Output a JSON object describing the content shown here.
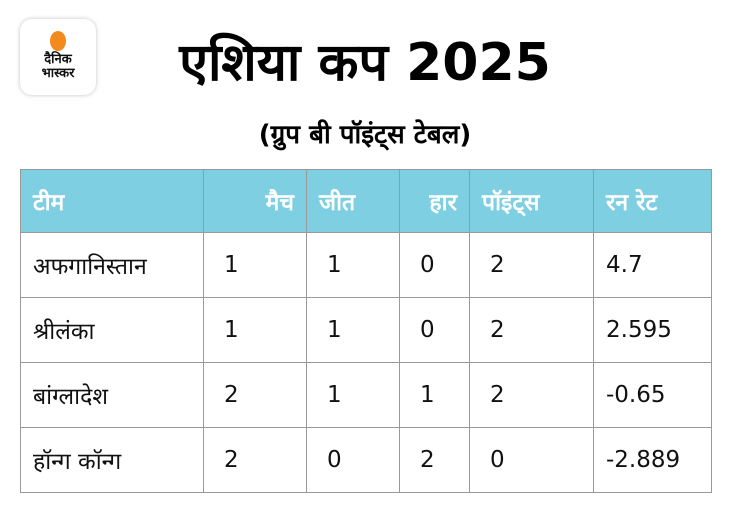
{
  "logo": {
    "line1": "दैनिक",
    "line2": "भास्कर"
  },
  "title": "एशिया कप 2025",
  "subtitle": "(ग्रुप बी पॉइंट्स टेबल)",
  "table": {
    "headers": [
      "टीम",
      "मैच",
      "जीत",
      "हार",
      "पॉइंट्स",
      "रन रेट"
    ],
    "rows": [
      [
        "अफगानिस्तान",
        "1",
        "1",
        "0",
        "2",
        "4.7"
      ],
      [
        "श्रीलंका",
        "1",
        "1",
        "0",
        "2",
        "2.595"
      ],
      [
        "बांग्लादेश",
        "2",
        "1",
        "1",
        "2",
        "-0.65"
      ],
      [
        "हॉन्ग कॉन्ग",
        "2",
        "0",
        "2",
        "0",
        "-2.889"
      ]
    ]
  },
  "colors": {
    "header_bg": "#7fcfe3",
    "logo_sun": "#f28a1e"
  }
}
